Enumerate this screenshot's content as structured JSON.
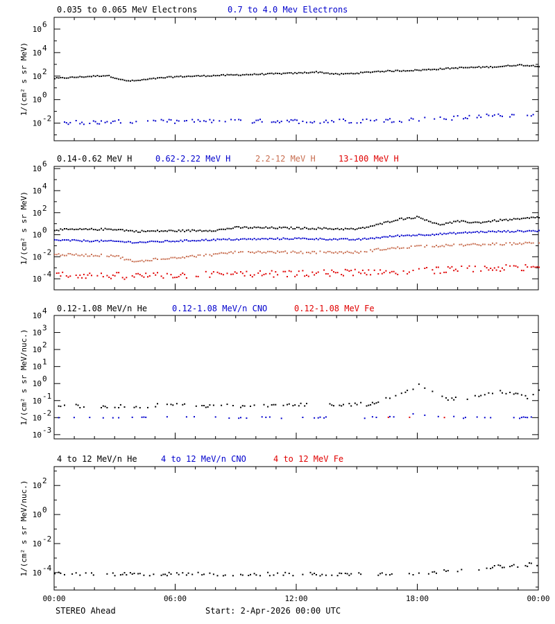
{
  "colors": {
    "black": "#000000",
    "blue": "#0000cc",
    "salmon": "#c86e50",
    "red": "#e00000"
  },
  "x_axis": {
    "tick_labels": [
      "00:00",
      "06:00",
      "12:00",
      "18:00",
      "00:00"
    ],
    "tick_hours": [
      0,
      6,
      12,
      18,
      24
    ]
  },
  "footer": {
    "spacecraft": "STEREO Ahead",
    "start": "Start:  2-Apr-2026 00:00 UTC"
  },
  "chart_data": [
    {
      "type": "scatter",
      "name": "electrons",
      "ylabel": "1/(cm² s sr MeV)",
      "ylim_log10": [
        -3.5,
        7
      ],
      "y_ticks": [
        {
          "label": "10",
          "exp": "-2",
          "value": -2
        },
        {
          "label": "10",
          "exp": "0",
          "value": 0
        },
        {
          "label": "10",
          "exp": "2",
          "value": 2
        },
        {
          "label": "10",
          "exp": "4",
          "value": 4
        },
        {
          "label": "10",
          "exp": "6",
          "value": 6
        }
      ],
      "x_unit": "hours",
      "series": [
        {
          "name": "0.035 to 0.065 MeV Electrons",
          "color": "#000000",
          "density": 1,
          "points": [
            [
              0,
              1.8
            ],
            [
              1,
              1.9
            ],
            [
              2,
              2.0
            ],
            [
              2.6,
              2.05
            ],
            [
              3,
              1.85
            ],
            [
              3.5,
              1.6
            ],
            [
              4,
              1.6
            ],
            [
              5,
              1.8
            ],
            [
              6,
              1.95
            ],
            [
              8,
              2.05
            ],
            [
              10,
              2.15
            ],
            [
              12,
              2.25
            ],
            [
              13,
              2.35
            ],
            [
              14,
              2.15
            ],
            [
              15,
              2.25
            ],
            [
              16,
              2.4
            ],
            [
              18,
              2.5
            ],
            [
              20,
              2.7
            ],
            [
              21,
              2.75
            ],
            [
              22,
              2.8
            ],
            [
              23,
              2.95
            ],
            [
              24,
              2.85
            ]
          ],
          "scatter": 0.05,
          "dropout": 0
        },
        {
          "name": "0.7 to 4.0 Mev Electrons",
          "color": "#0000cc",
          "density": 1,
          "points": [
            [
              0,
              -1.95
            ],
            [
              4,
              -1.9
            ],
            [
              8,
              -1.85
            ],
            [
              12,
              -1.85
            ],
            [
              16,
              -1.8
            ],
            [
              18,
              -1.7
            ],
            [
              20,
              -1.55
            ],
            [
              22,
              -1.35
            ],
            [
              24,
              -1.3
            ]
          ],
          "scatter": 0.18,
          "dropout": 0.45
        }
      ]
    },
    {
      "type": "scatter",
      "name": "protons",
      "ylabel": "1/(cm² s sr MeV)",
      "ylim_log10": [
        -5,
        6.2
      ],
      "y_ticks": [
        {
          "label": "10",
          "exp": "-4",
          "value": -4
        },
        {
          "label": "10",
          "exp": "-2",
          "value": -2
        },
        {
          "label": "10",
          "exp": "0",
          "value": 0
        },
        {
          "label": "10",
          "exp": "2",
          "value": 2
        },
        {
          "label": "10",
          "exp": "4",
          "value": 4
        },
        {
          "label": "10",
          "exp": "6",
          "value": 6
        }
      ],
      "x_unit": "hours",
      "series": [
        {
          "name": "0.14-0.62 MeV H",
          "color": "#000000",
          "density": 1,
          "points": [
            [
              0,
              0.45
            ],
            [
              3,
              0.5
            ],
            [
              4,
              0.3
            ],
            [
              8,
              0.4
            ],
            [
              9,
              0.65
            ],
            [
              12,
              0.6
            ],
            [
              15,
              0.5
            ],
            [
              16,
              0.9
            ],
            [
              17,
              1.4
            ],
            [
              18,
              1.6
            ],
            [
              18.5,
              1.3
            ],
            [
              19,
              0.9
            ],
            [
              20,
              1.2
            ],
            [
              21,
              1.1
            ],
            [
              22,
              1.3
            ],
            [
              23,
              1.4
            ],
            [
              24,
              1.6
            ]
          ],
          "scatter": 0.08,
          "dropout": 0
        },
        {
          "name": "0.62-2.22 MeV H",
          "color": "#0000cc",
          "density": 1,
          "points": [
            [
              0,
              -0.5
            ],
            [
              3,
              -0.6
            ],
            [
              4,
              -0.7
            ],
            [
              8,
              -0.45
            ],
            [
              12,
              -0.35
            ],
            [
              15,
              -0.45
            ],
            [
              17,
              -0.1
            ],
            [
              19,
              0.05
            ],
            [
              21,
              0.25
            ],
            [
              24,
              0.35
            ]
          ],
          "scatter": 0.07,
          "dropout": 0
        },
        {
          "name": "2.2-12 MeV H",
          "color": "#c86e50",
          "density": 1,
          "points": [
            [
              0,
              -1.8
            ],
            [
              3,
              -1.9
            ],
            [
              4,
              -2.5
            ],
            [
              5,
              -2.2
            ],
            [
              8,
              -1.8
            ],
            [
              9,
              -1.55
            ],
            [
              12,
              -1.6
            ],
            [
              15,
              -1.6
            ],
            [
              16,
              -1.35
            ],
            [
              18,
              -1.05
            ],
            [
              20,
              -0.95
            ],
            [
              22,
              -0.85
            ],
            [
              24,
              -0.75
            ]
          ],
          "scatter": 0.1,
          "dropout": 0.1
        },
        {
          "name": "13-100 MeV H",
          "color": "#e00000",
          "density": 1,
          "points": [
            [
              0,
              -3.65
            ],
            [
              4,
              -3.75
            ],
            [
              8,
              -3.6
            ],
            [
              12,
              -3.55
            ],
            [
              16,
              -3.35
            ],
            [
              18,
              -3.3
            ],
            [
              20,
              -3.15
            ],
            [
              22,
              -3.05
            ],
            [
              24,
              -3.0
            ]
          ],
          "scatter": 0.3,
          "dropout": 0.35
        }
      ]
    },
    {
      "type": "scatter",
      "name": "heavy-low",
      "ylabel": "1/(cm² s sr MeV/nuc.)",
      "ylim_log10": [
        -3.25,
        4
      ],
      "y_ticks": [
        {
          "label": "10",
          "exp": "-3",
          "value": -3
        },
        {
          "label": "10",
          "exp": "-2",
          "value": -2
        },
        {
          "label": "10",
          "exp": "-1",
          "value": -1
        },
        {
          "label": "10",
          "exp": "0",
          "value": 0
        },
        {
          "label": "10",
          "exp": "1",
          "value": 1
        },
        {
          "label": "10",
          "exp": "2",
          "value": 2
        },
        {
          "label": "10",
          "exp": "3",
          "value": 3
        },
        {
          "label": "10",
          "exp": "4",
          "value": 4
        }
      ],
      "x_unit": "hours",
      "series": [
        {
          "name": "0.12-1.08 MeV/n He",
          "color": "#000000",
          "density": 1,
          "points": [
            [
              0,
              -1.3
            ],
            [
              6,
              -1.3
            ],
            [
              9,
              -1.3
            ],
            [
              11,
              -1.25
            ],
            [
              14,
              -1.3
            ],
            [
              15.5,
              -1.2
            ],
            [
              16.5,
              -0.8
            ],
            [
              17.5,
              -0.35
            ],
            [
              18.2,
              -0.1
            ],
            [
              18.8,
              -0.6
            ],
            [
              19.5,
              -0.9
            ],
            [
              21,
              -0.8
            ],
            [
              22,
              -0.5
            ],
            [
              23,
              -0.55
            ],
            [
              23.6,
              -0.9
            ],
            [
              24,
              -0.3
            ]
          ],
          "scatter": 0.12,
          "dropout": 0.55
        },
        {
          "name": "0.12-1.08 MeV/n CNO",
          "color": "#0000cc",
          "density": 1,
          "points": [
            [
              0,
              -2.0
            ],
            [
              12,
              -2.0
            ],
            [
              16,
              -2.0
            ],
            [
              18,
              -1.8
            ],
            [
              20,
              -2.0
            ],
            [
              24,
              -2.0
            ]
          ],
          "scatter": 0.05,
          "dropout": 0.82
        },
        {
          "name": "0.12-1.08 MeV Fe",
          "color": "#e00000",
          "density": 1,
          "points": [
            [
              15,
              -2.0
            ],
            [
              24,
              -2.0
            ]
          ],
          "scatter": 0.02,
          "dropout": 0.97
        }
      ]
    },
    {
      "type": "scatter",
      "name": "heavy-high",
      "ylabel": "1/(cm² s sr MeV/nuc.)",
      "ylim_log10": [
        -5.2,
        3.3
      ],
      "y_ticks": [
        {
          "label": "10",
          "exp": "-4",
          "value": -4
        },
        {
          "label": "10",
          "exp": "-2",
          "value": -2
        },
        {
          "label": "10",
          "exp": "0",
          "value": 0
        },
        {
          "label": "10",
          "exp": "2",
          "value": 2
        }
      ],
      "x_unit": "hours",
      "series": [
        {
          "name": "4 to 12 MeV/n He",
          "color": "#000000",
          "density": 1,
          "points": [
            [
              0,
              -4.1
            ],
            [
              14,
              -4.1
            ],
            [
              18,
              -4.05
            ],
            [
              20,
              -3.85
            ],
            [
              22,
              -3.6
            ],
            [
              24,
              -3.4
            ]
          ],
          "scatter": 0.12,
          "dropout": 0.55
        },
        {
          "name": "4 to 12 MeV/n CNO",
          "color": "#0000cc",
          "density": 1,
          "points": [],
          "scatter": 0,
          "dropout": 1
        },
        {
          "name": "4 to 12 MeV Fe",
          "color": "#e00000",
          "density": 1,
          "points": [],
          "scatter": 0,
          "dropout": 1
        }
      ]
    }
  ]
}
